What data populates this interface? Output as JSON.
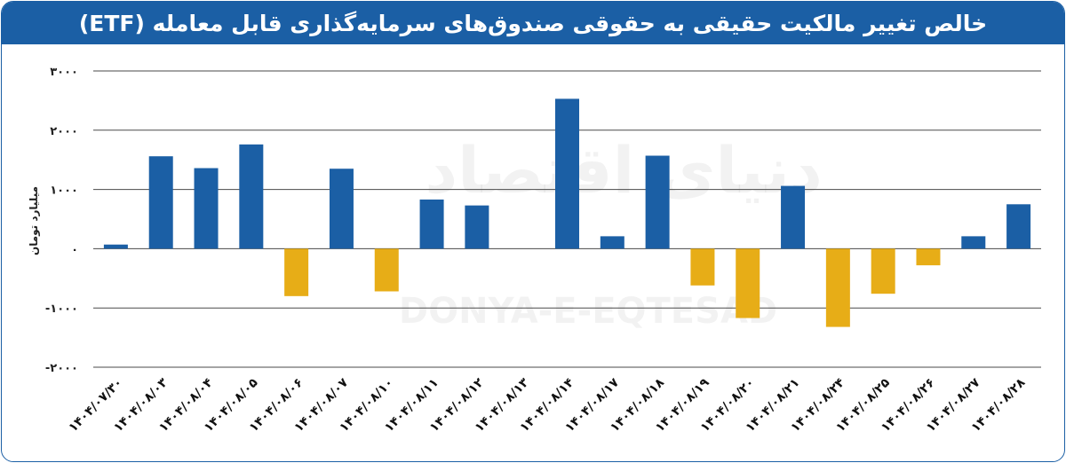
{
  "chart_data": {
    "type": "bar",
    "title": "خالص تغییر مالکیت حقیقی به حقوقی صندوق‌های سرمایه‌گذاری قابل معامله (ETF)",
    "ylabel": "میلیارد تومان",
    "xlabel": "",
    "ylim": [
      -2000,
      3000
    ],
    "yticks": [
      3000,
      2000,
      1000,
      0,
      -1000,
      -2000
    ],
    "ytick_labels": [
      "۳۰۰۰",
      "۲۰۰۰",
      "۱۰۰۰",
      "۰",
      "-۱۰۰۰",
      "-۲۰۰۰"
    ],
    "grid": true,
    "legend": "none",
    "colors": {
      "positive": "#1b5fa5",
      "negative": "#e7ad17",
      "header": "#1b5fa5"
    },
    "categories": [
      "۱۴۰۴/۰۷/۳۰",
      "۱۴۰۴/۰۸/۰۳",
      "۱۴۰۴/۰۸/۰۴",
      "۱۴۰۴/۰۸/۰۵",
      "۱۴۰۴/۰۸/۰۶",
      "۱۴۰۴/۰۸/۰۷",
      "۱۴۰۴/۰۸/۱۰",
      "۱۴۰۴/۰۸/۱۱",
      "۱۴۰۴/۰۸/۱۲",
      "۱۴۰۴/۰۸/۱۳",
      "۱۴۰۴/۰۸/۱۴",
      "۱۴۰۴/۰۸/۱۷",
      "۱۴۰۴/۰۸/۱۸",
      "۱۴۰۴/۰۸/۱۹",
      "۱۴۰۴/۰۸/۲۰",
      "۱۴۰۴/۰۸/۲۱",
      "۱۴۰۴/۰۸/۲۴",
      "۱۴۰۴/۰۸/۲۵",
      "۱۴۰۴/۰۸/۲۶",
      "۱۴۰۴/۰۸/۲۷",
      "۱۴۰۴/۰۸/۲۸"
    ],
    "values": [
      70,
      1560,
      1360,
      1760,
      -800,
      1350,
      -720,
      830,
      730,
      0,
      2530,
      210,
      1570,
      -620,
      -1170,
      1060,
      -1320,
      -760,
      -280,
      210,
      750
    ]
  },
  "watermark": {
    "persian": "دنیای اقتصاد",
    "latin": "DONYA-E-EQTESAD"
  }
}
